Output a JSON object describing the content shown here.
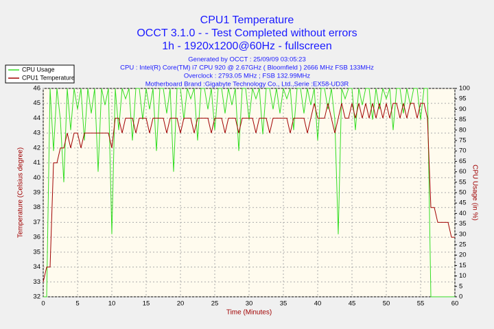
{
  "chart_data": {
    "type": "line",
    "title": "CPU1 Temperature",
    "subtitle": "OCCT 3.1.0 -  - Test Completed without errors",
    "subtitle2": "1h - 1920x1200@60Hz - fullscreen",
    "info": [
      "Generated by OCCT : 25/09/09 03:05:23",
      "CPU : Intel(R) Core(TM) i7 CPU 920 @ 2.67GHz ( Bloomfield ) 2666 MHz FSB 133MHz",
      "Overclock : 2793.05 MHz ; FSB 132.99MHz",
      "Motherboard Brand :Gigabyte Technology Co., Ltd.,Serie :EX58-UD3R"
    ],
    "x_label": "Time (Minutes)",
    "y_label": "Temperature (Celsius degree)",
    "y2_label": "CPU Usage (in %)",
    "xlim": [
      0,
      60
    ],
    "xticks": [
      0,
      5,
      10,
      15,
      20,
      25,
      30,
      35,
      40,
      45,
      50,
      55,
      60
    ],
    "ylim": [
      32,
      46
    ],
    "yticks": [
      32,
      33,
      34,
      35,
      36,
      37,
      38,
      39,
      40,
      41,
      42,
      43,
      44,
      45,
      46
    ],
    "y2lim": [
      0,
      100
    ],
    "y2ticks": [
      0,
      5,
      10,
      15,
      20,
      25,
      30,
      35,
      40,
      45,
      50,
      55,
      60,
      65,
      70,
      75,
      80,
      85,
      90,
      95,
      100
    ],
    "grid": true,
    "legend": "top-left",
    "x": [
      0,
      0.5,
      1,
      1.5,
      2,
      2.5,
      3,
      3.5,
      4,
      4.5,
      5,
      5.5,
      6,
      6.5,
      7,
      7.5,
      8,
      8.5,
      9,
      9.5,
      10,
      10.5,
      11,
      11.5,
      12,
      12.5,
      13,
      13.5,
      14,
      14.5,
      15,
      15.5,
      16,
      16.5,
      17,
      17.5,
      18,
      18.5,
      19,
      19.5,
      20,
      20.5,
      21,
      21.5,
      22,
      22.5,
      23,
      23.5,
      24,
      24.5,
      25,
      25.5,
      26,
      26.5,
      27,
      27.5,
      28,
      28.5,
      29,
      29.5,
      30,
      30.5,
      31,
      31.5,
      32,
      32.5,
      33,
      33.5,
      34,
      34.5,
      35,
      35.5,
      36,
      36.5,
      37,
      37.5,
      38,
      38.5,
      39,
      39.5,
      40,
      40.5,
      41,
      41.5,
      42,
      42.5,
      43,
      43.5,
      44,
      44.5,
      45,
      45.5,
      46,
      46.5,
      47,
      47.5,
      48,
      48.5,
      49,
      49.5,
      50,
      50.5,
      51,
      51.5,
      52,
      52.5,
      53,
      53.5,
      54,
      54.5,
      55,
      55.5,
      56,
      56.5,
      57,
      57.5,
      58,
      58.5,
      59,
      59.5,
      60
    ],
    "series": [
      {
        "name": "CPU Usage",
        "color": "#33dd22",
        "axis": "y2",
        "values": [
          0,
          0,
          100,
          70,
          100,
          85,
          55,
          100,
          80,
          100,
          90,
          100,
          75,
          100,
          88,
          100,
          60,
          100,
          92,
          100,
          30,
          100,
          80,
          100,
          95,
          100,
          75,
          100,
          100,
          85,
          100,
          90,
          100,
          70,
          100,
          100,
          88,
          100,
          60,
          100,
          100,
          85,
          100,
          95,
          100,
          75,
          100,
          100,
          90,
          100,
          80,
          100,
          100,
          88,
          100,
          92,
          100,
          70,
          100,
          100,
          85,
          100,
          95,
          100,
          78,
          100,
          100,
          90,
          100,
          88,
          100,
          95,
          100,
          80,
          100,
          100,
          88,
          100,
          92,
          100,
          75,
          100,
          100,
          90,
          100,
          85,
          30,
          100,
          95,
          100,
          100,
          80,
          100,
          92,
          100,
          100,
          85,
          100,
          90,
          100,
          95,
          100,
          80,
          100,
          100,
          88,
          100,
          92,
          100,
          100,
          85,
          100,
          100,
          0,
          0,
          0,
          0,
          0,
          0,
          0,
          0
        ]
      },
      {
        "name": "CPU1 Temperature",
        "color": "#a00000",
        "values": [
          33,
          34,
          34,
          41,
          41,
          42,
          42,
          43,
          42,
          43,
          43,
          42,
          43,
          43,
          43,
          43,
          43,
          43,
          43,
          43,
          42,
          44,
          44,
          43,
          44,
          44,
          44,
          43,
          44,
          44,
          44,
          43,
          44,
          44,
          44,
          44,
          43,
          44,
          44,
          44,
          43,
          44,
          44,
          44,
          43,
          44,
          44,
          44,
          44,
          43,
          44,
          44,
          44,
          43,
          44,
          44,
          44,
          43,
          44,
          44,
          44,
          44,
          43,
          44,
          44,
          44,
          43,
          44,
          44,
          44,
          44,
          44,
          43,
          44,
          44,
          44,
          44,
          43,
          44,
          45,
          44,
          44,
          44,
          45,
          44,
          43,
          44,
          45,
          44,
          44,
          45,
          44,
          45,
          44,
          45,
          44,
          45,
          44,
          45,
          44,
          45,
          44,
          45,
          45,
          44,
          45,
          44,
          45,
          45,
          44,
          45,
          45,
          44,
          38,
          38,
          37,
          37,
          37,
          37,
          36,
          36
        ]
      }
    ]
  }
}
